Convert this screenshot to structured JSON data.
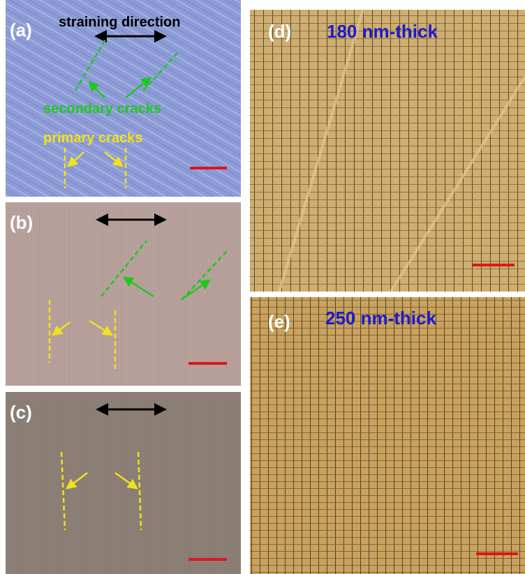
{
  "panels": [
    {
      "label": "(a)",
      "direction": "straining direction",
      "secondary": "secondary cracks",
      "primary": "primary cracks"
    },
    {
      "label": "(b)"
    },
    {
      "label": "(c)"
    },
    {
      "label": "(d)",
      "thickness": "180 nm-thick"
    },
    {
      "label": "(e)",
      "thickness": "250 nm-thick"
    }
  ]
}
